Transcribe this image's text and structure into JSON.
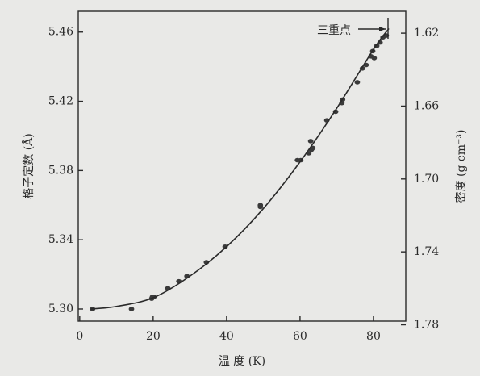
{
  "chart_data": {
    "type": "scatter",
    "x_label": "温 度 (K)",
    "y_label": "格子定数 (Å)",
    "y2_label": "密度 (g cm⁻³)",
    "annotation": "三重点",
    "xlim": [
      -0.4,
      88.8
    ],
    "xticks": [
      0,
      20,
      40,
      60,
      80
    ],
    "ylim": [
      5.293,
      5.472
    ],
    "yticks": [
      {
        "value": 5.3,
        "label": "5.30"
      },
      5.34,
      5.38,
      5.42,
      5.46
    ],
    "y2lim": [
      1.778,
      1.608
    ],
    "y2ticks": [
      1.62,
      1.66,
      {
        "value": 1.7,
        "label": "1.70"
      },
      1.74,
      1.78
    ],
    "series": [
      {
        "type": "scatter",
        "color": "#3a3a3a",
        "x": [
          3.5,
          14.1,
          19.8,
          20.2,
          19.6,
          24.0,
          27.0,
          29.2,
          34.5,
          39.6,
          49.2,
          49.2,
          59.3,
          60.2,
          62.4,
          62.9,
          63.1,
          63.5,
          67.3,
          69.7,
          71.4,
          71.6,
          75.6,
          77.0,
          78.0,
          79.3,
          79.8,
          80.2,
          80.9,
          81.8,
          82.6,
          83.5
        ],
        "values": [
          5.3,
          5.3,
          5.307,
          5.307,
          5.306,
          5.312,
          5.316,
          5.319,
          5.327,
          5.336,
          5.359,
          5.36,
          5.386,
          5.386,
          5.39,
          5.397,
          5.392,
          5.393,
          5.409,
          5.414,
          5.419,
          5.421,
          5.431,
          5.439,
          5.441,
          5.446,
          5.449,
          5.445,
          5.452,
          5.454,
          5.457,
          5.458
        ]
      },
      {
        "type": "line",
        "color": "#2a2a2a",
        "x": [
          3,
          10,
          20,
          30,
          40,
          50,
          60,
          70,
          80,
          84.2
        ],
        "values": [
          5.3,
          5.3015,
          5.3065,
          5.319,
          5.336,
          5.358,
          5.385,
          5.416,
          5.45,
          5.462
        ]
      }
    ]
  }
}
